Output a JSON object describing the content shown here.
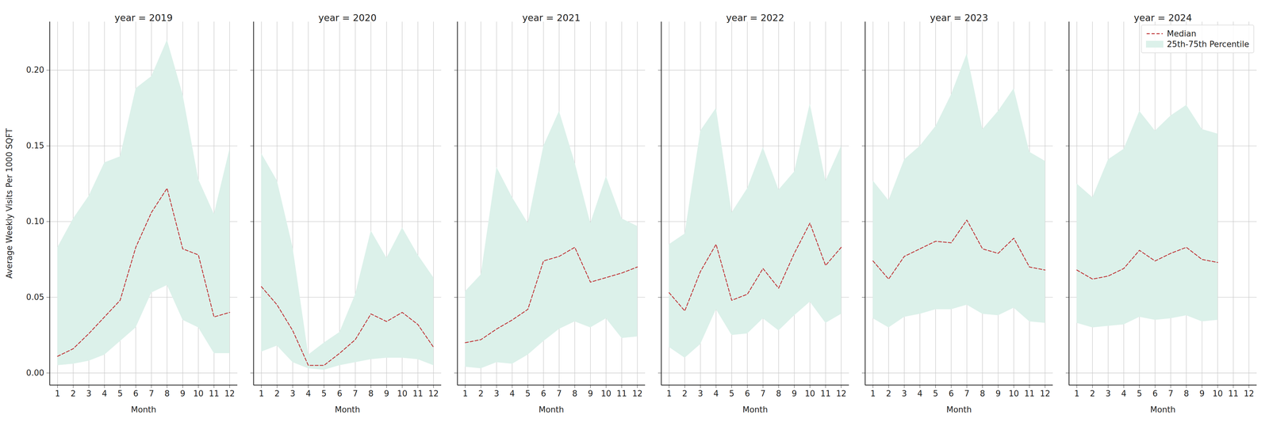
{
  "chart_data": [
    {
      "type": "line",
      "title": "year = 2019",
      "x_label": "Month",
      "y_label": "Average Weekly Visits Per 1000 SQFT",
      "x": [
        1,
        2,
        3,
        4,
        5,
        6,
        7,
        8,
        9,
        10,
        11,
        12
      ],
      "series": [
        {
          "name": "Median",
          "type": "line",
          "color": "#c0393b",
          "line_style": "dashed",
          "values": [
            0.011,
            0.016,
            0.026,
            0.037,
            0.048,
            0.083,
            0.106,
            0.122,
            0.082,
            0.078,
            0.037,
            0.04
          ]
        },
        {
          "name": "25th-75th Percentile",
          "type": "area",
          "color": "#dcf1ea",
          "lower": [
            0.005,
            0.006,
            0.008,
            0.012,
            0.021,
            0.03,
            0.053,
            0.058,
            0.035,
            0.03,
            0.013,
            0.013
          ],
          "upper": [
            0.083,
            0.102,
            0.117,
            0.139,
            0.143,
            0.188,
            0.196,
            0.22,
            0.184,
            0.128,
            0.105,
            0.148
          ]
        }
      ],
      "xlim": [
        0.5,
        12.5
      ],
      "ylim": [
        -0.008,
        0.232
      ],
      "xticks": [
        1,
        2,
        3,
        4,
        5,
        6,
        7,
        8,
        9,
        10,
        11,
        12
      ],
      "yticks": [
        {
          "value": 0,
          "label": "0.00"
        },
        {
          "value": 0.05,
          "label": "0.05"
        },
        {
          "value": 0.1,
          "label": "0.10"
        },
        {
          "value": 0.15,
          "label": "0.15"
        },
        {
          "value": 0.2,
          "label": "0.20"
        }
      ],
      "grid": true
    },
    {
      "type": "line",
      "title": "year = 2020",
      "x_label": "Month",
      "x": [
        1,
        2,
        3,
        4,
        5,
        6,
        7,
        8,
        9,
        10,
        11,
        12
      ],
      "series": [
        {
          "name": "Median",
          "type": "line",
          "color": "#c0393b",
          "line_style": "dashed",
          "values": [
            0.057,
            0.045,
            0.028,
            0.005,
            0.005,
            0.013,
            0.022,
            0.039,
            0.034,
            0.04,
            0.032,
            0.017
          ]
        },
        {
          "name": "25th-75th Percentile",
          "type": "area",
          "color": "#dcf1ea",
          "lower": [
            0.014,
            0.018,
            0.007,
            0.003,
            0.002,
            0.005,
            0.007,
            0.009,
            0.01,
            0.01,
            0.009,
            0.005
          ],
          "upper": [
            0.145,
            0.127,
            0.083,
            0.012,
            0.02,
            0.027,
            0.052,
            0.094,
            0.076,
            0.096,
            0.078,
            0.063
          ]
        }
      ],
      "xlim": [
        0.5,
        12.5
      ],
      "ylim": [
        -0.008,
        0.232
      ],
      "xticks": [
        1,
        2,
        3,
        4,
        5,
        6,
        7,
        8,
        9,
        10,
        11,
        12
      ],
      "yticks": [
        0,
        0.05,
        0.1,
        0.15,
        0.2
      ],
      "tick_labels": "x",
      "grid": true
    },
    {
      "type": "line",
      "title": "year = 2021",
      "x_label": "Month",
      "x": [
        1,
        2,
        3,
        4,
        5,
        6,
        7,
        8,
        9,
        10,
        11,
        12
      ],
      "series": [
        {
          "name": "Median",
          "type": "line",
          "color": "#c0393b",
          "line_style": "dashed",
          "values": [
            0.02,
            0.022,
            0.029,
            0.035,
            0.042,
            0.074,
            0.077,
            0.083,
            0.06,
            0.063,
            0.066,
            0.07
          ]
        },
        {
          "name": "25th-75th Percentile",
          "type": "area",
          "color": "#dcf1ea",
          "lower": [
            0.004,
            0.003,
            0.007,
            0.006,
            0.012,
            0.021,
            0.029,
            0.034,
            0.03,
            0.036,
            0.023,
            0.024
          ],
          "upper": [
            0.054,
            0.065,
            0.136,
            0.116,
            0.099,
            0.15,
            0.173,
            0.139,
            0.099,
            0.13,
            0.102,
            0.097
          ]
        }
      ],
      "xlim": [
        0.5,
        12.5
      ],
      "ylim": [
        -0.008,
        0.232
      ],
      "xticks": [
        1,
        2,
        3,
        4,
        5,
        6,
        7,
        8,
        9,
        10,
        11,
        12
      ],
      "yticks": [
        0,
        0.05,
        0.1,
        0.15,
        0.2
      ],
      "tick_labels": "x",
      "grid": true
    },
    {
      "type": "line",
      "title": "year = 2022",
      "x_label": "Month",
      "x": [
        1,
        2,
        3,
        4,
        5,
        6,
        7,
        8,
        9,
        10,
        11,
        12
      ],
      "series": [
        {
          "name": "Median",
          "type": "line",
          "color": "#c0393b",
          "line_style": "dashed",
          "values": [
            0.053,
            0.041,
            0.067,
            0.085,
            0.048,
            0.052,
            0.069,
            0.056,
            0.079,
            0.099,
            0.071,
            0.083
          ]
        },
        {
          "name": "25th-75th Percentile",
          "type": "area",
          "color": "#dcf1ea",
          "lower": [
            0.017,
            0.01,
            0.019,
            0.042,
            0.025,
            0.026,
            0.036,
            0.028,
            0.038,
            0.047,
            0.033,
            0.039
          ],
          "upper": [
            0.085,
            0.092,
            0.16,
            0.175,
            0.106,
            0.122,
            0.149,
            0.121,
            0.133,
            0.178,
            0.127,
            0.15
          ]
        }
      ],
      "xlim": [
        0.5,
        12.5
      ],
      "ylim": [
        -0.008,
        0.232
      ],
      "xticks": [
        1,
        2,
        3,
        4,
        5,
        6,
        7,
        8,
        9,
        10,
        11,
        12
      ],
      "yticks": [
        0,
        0.05,
        0.1,
        0.15,
        0.2
      ],
      "tick_labels": "x",
      "grid": true
    },
    {
      "type": "line",
      "title": "year = 2023",
      "x_label": "Month",
      "x": [
        1,
        2,
        3,
        4,
        5,
        6,
        7,
        8,
        9,
        10,
        11,
        12
      ],
      "series": [
        {
          "name": "Median",
          "type": "line",
          "color": "#c0393b",
          "line_style": "dashed",
          "values": [
            0.074,
            0.062,
            0.077,
            0.082,
            0.087,
            0.086,
            0.101,
            0.082,
            0.079,
            0.089,
            0.07,
            0.068
          ]
        },
        {
          "name": "25th-75th Percentile",
          "type": "area",
          "color": "#dcf1ea",
          "lower": [
            0.036,
            0.03,
            0.037,
            0.039,
            0.042,
            0.042,
            0.045,
            0.039,
            0.038,
            0.043,
            0.034,
            0.033
          ],
          "upper": [
            0.127,
            0.114,
            0.141,
            0.15,
            0.163,
            0.184,
            0.211,
            0.161,
            0.173,
            0.188,
            0.146,
            0.14
          ]
        }
      ],
      "xlim": [
        0.5,
        12.5
      ],
      "ylim": [
        -0.008,
        0.232
      ],
      "xticks": [
        1,
        2,
        3,
        4,
        5,
        6,
        7,
        8,
        9,
        10,
        11,
        12
      ],
      "yticks": [
        0,
        0.05,
        0.1,
        0.15,
        0.2
      ],
      "tick_labels": "x",
      "grid": true
    },
    {
      "type": "line",
      "title": "year = 2024",
      "x_label": "Month",
      "x": [
        1,
        2,
        3,
        4,
        5,
        6,
        7,
        8,
        9,
        10
      ],
      "series": [
        {
          "name": "Median",
          "type": "line",
          "color": "#c0393b",
          "line_style": "dashed",
          "values": [
            0.068,
            0.062,
            0.064,
            0.069,
            0.081,
            0.074,
            0.079,
            0.083,
            0.075,
            0.073
          ]
        },
        {
          "name": "25th-75th Percentile",
          "type": "area",
          "color": "#dcf1ea",
          "lower": [
            0.033,
            0.03,
            0.031,
            0.032,
            0.037,
            0.035,
            0.036,
            0.038,
            0.034,
            0.035
          ],
          "upper": [
            0.125,
            0.116,
            0.141,
            0.148,
            0.173,
            0.16,
            0.17,
            0.177,
            0.161,
            0.158
          ]
        }
      ],
      "xlim": [
        0.5,
        12.5
      ],
      "ylim": [
        -0.008,
        0.232
      ],
      "xticks": [
        1,
        2,
        3,
        4,
        5,
        6,
        7,
        8,
        9,
        10,
        11,
        12
      ],
      "yticks": [
        0,
        0.05,
        0.1,
        0.15,
        0.2
      ],
      "tick_labels": "x",
      "grid": true,
      "legend": "upper right"
    }
  ]
}
